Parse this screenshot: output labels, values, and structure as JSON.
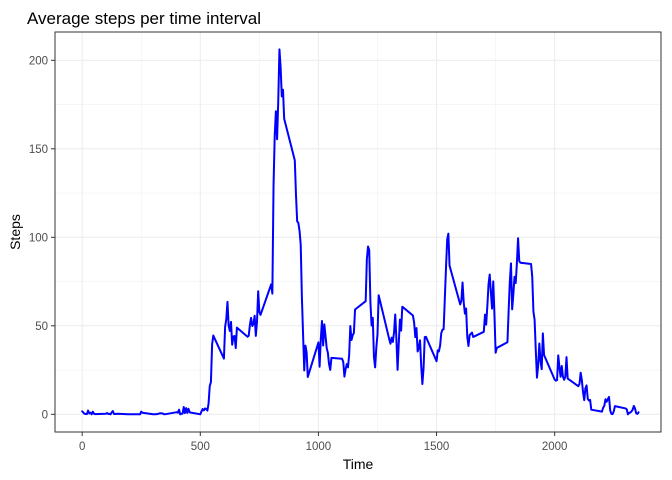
{
  "chart_data": {
    "type": "line",
    "title": "Average steps per time interval",
    "xlabel": "Time",
    "ylabel": "Steps",
    "xlim": [
      -115,
      2450
    ],
    "ylim": [
      -10,
      216
    ],
    "x_ticks": [
      0,
      500,
      1000,
      1500,
      2000
    ],
    "y_ticks": [
      0,
      50,
      100,
      150,
      200
    ],
    "x_tick_labels": [
      "0",
      "500",
      "1000",
      "1500",
      "2000"
    ],
    "y_tick_labels": [
      "0",
      "50",
      "100",
      "150",
      "200"
    ],
    "grid": true,
    "legend": "none",
    "series": [
      {
        "color": "#0000ff",
        "points": [
          [
            0,
            1.7
          ],
          [
            10,
            0.3
          ],
          [
            15,
            0.2
          ],
          [
            20,
            0.1
          ],
          [
            25,
            2.1
          ],
          [
            30,
            0.5
          ],
          [
            35,
            0.9
          ],
          [
            40,
            0.0
          ],
          [
            45,
            1.5
          ],
          [
            50,
            0.3
          ],
          [
            55,
            0.1
          ],
          [
            100,
            0.3
          ],
          [
            105,
            0.7
          ],
          [
            110,
            0.2
          ],
          [
            115,
            0.3
          ],
          [
            120,
            0.0
          ],
          [
            125,
            1.1
          ],
          [
            130,
            1.8
          ],
          [
            135,
            0.2
          ],
          [
            140,
            0.2
          ],
          [
            150,
            0.3
          ],
          [
            200,
            0.0
          ],
          [
            220,
            0.0
          ],
          [
            240,
            0.0
          ],
          [
            245,
            0.0
          ],
          [
            250,
            1.5
          ],
          [
            255,
            0.9
          ],
          [
            300,
            0.0
          ],
          [
            310,
            0.0
          ],
          [
            320,
            0.2
          ],
          [
            330,
            0.6
          ],
          [
            335,
            0.5
          ],
          [
            340,
            0.5
          ],
          [
            345,
            0.1
          ],
          [
            350,
            0.0
          ],
          [
            400,
            1.2
          ],
          [
            405,
            0.9
          ],
          [
            410,
            2.6
          ],
          [
            415,
            0.0
          ],
          [
            420,
            0.3
          ],
          [
            425,
            0.4
          ],
          [
            430,
            4.1
          ],
          [
            435,
            0.7
          ],
          [
            440,
            3.5
          ],
          [
            445,
            0.8
          ],
          [
            450,
            3.1
          ],
          [
            455,
            1.1
          ],
          [
            500,
            0.0
          ],
          [
            505,
            1.6
          ],
          [
            510,
            3.0
          ],
          [
            515,
            2.2
          ],
          [
            520,
            3.3
          ],
          [
            525,
            3.0
          ],
          [
            530,
            2.1
          ],
          [
            535,
            6.1
          ],
          [
            540,
            16.0
          ],
          [
            545,
            18.3
          ],
          [
            550,
            39.5
          ],
          [
            555,
            44.5
          ],
          [
            600,
            31.5
          ],
          [
            605,
            49.3
          ],
          [
            610,
            53.8
          ],
          [
            615,
            63.5
          ],
          [
            620,
            50.0
          ],
          [
            625,
            47.1
          ],
          [
            630,
            52.2
          ],
          [
            635,
            39.3
          ],
          [
            640,
            44.0
          ],
          [
            645,
            44.2
          ],
          [
            650,
            37.4
          ],
          [
            655,
            49.0
          ],
          [
            700,
            43.8
          ],
          [
            705,
            44.4
          ],
          [
            710,
            50.5
          ],
          [
            715,
            54.5
          ],
          [
            720,
            49.9
          ],
          [
            725,
            51.0
          ],
          [
            730,
            55.7
          ],
          [
            735,
            44.3
          ],
          [
            740,
            52.3
          ],
          [
            745,
            69.5
          ],
          [
            750,
            57.8
          ],
          [
            755,
            56.2
          ],
          [
            800,
            73.4
          ],
          [
            805,
            68.2
          ],
          [
            810,
            129.4
          ],
          [
            815,
            157.5
          ],
          [
            820,
            171.2
          ],
          [
            825,
            155.4
          ],
          [
            830,
            177.3
          ],
          [
            835,
            206.2
          ],
          [
            840,
            195.9
          ],
          [
            845,
            179.6
          ],
          [
            850,
            183.4
          ],
          [
            855,
            167.0
          ],
          [
            900,
            143.5
          ],
          [
            905,
            124.0
          ],
          [
            910,
            109.1
          ],
          [
            915,
            108.1
          ],
          [
            920,
            103.7
          ],
          [
            925,
            95.9
          ],
          [
            930,
            66.2
          ],
          [
            935,
            45.2
          ],
          [
            940,
            24.8
          ],
          [
            945,
            38.8
          ],
          [
            950,
            35.0
          ],
          [
            955,
            21.1
          ],
          [
            1000,
            40.6
          ],
          [
            1005,
            26.9
          ],
          [
            1010,
            42.4
          ],
          [
            1015,
            52.7
          ],
          [
            1020,
            38.9
          ],
          [
            1025,
            50.8
          ],
          [
            1030,
            44.3
          ],
          [
            1035,
            37.4
          ],
          [
            1040,
            34.7
          ],
          [
            1045,
            28.3
          ],
          [
            1050,
            25.1
          ],
          [
            1055,
            31.9
          ],
          [
            1100,
            31.4
          ],
          [
            1105,
            29.7
          ],
          [
            1110,
            21.3
          ],
          [
            1115,
            25.5
          ],
          [
            1120,
            28.4
          ],
          [
            1125,
            26.5
          ],
          [
            1130,
            33.4
          ],
          [
            1135,
            49.9
          ],
          [
            1140,
            42.0
          ],
          [
            1145,
            44.6
          ],
          [
            1150,
            46.0
          ],
          [
            1155,
            59.2
          ],
          [
            1200,
            63.9
          ],
          [
            1205,
            87.7
          ],
          [
            1210,
            94.8
          ],
          [
            1215,
            92.8
          ],
          [
            1220,
            63.4
          ],
          [
            1225,
            50.2
          ],
          [
            1230,
            54.5
          ],
          [
            1235,
            32.4
          ],
          [
            1240,
            26.5
          ],
          [
            1245,
            37.7
          ],
          [
            1250,
            45.1
          ],
          [
            1255,
            67.3
          ],
          [
            1300,
            42.3
          ],
          [
            1305,
            39.9
          ],
          [
            1310,
            43.3
          ],
          [
            1315,
            40.9
          ],
          [
            1320,
            46.2
          ],
          [
            1325,
            56.4
          ],
          [
            1330,
            42.8
          ],
          [
            1335,
            25.1
          ],
          [
            1340,
            39.9
          ],
          [
            1345,
            53.5
          ],
          [
            1350,
            47.3
          ],
          [
            1355,
            60.8
          ],
          [
            1400,
            55.8
          ],
          [
            1405,
            51.9
          ],
          [
            1410,
            43.6
          ],
          [
            1415,
            48.7
          ],
          [
            1420,
            35.5
          ],
          [
            1425,
            37.5
          ],
          [
            1430,
            41.8
          ],
          [
            1435,
            27.5
          ],
          [
            1440,
            17.1
          ],
          [
            1445,
            26.1
          ],
          [
            1450,
            43.6
          ],
          [
            1455,
            43.8
          ],
          [
            1500,
            30.0
          ],
          [
            1505,
            36.1
          ],
          [
            1510,
            35.5
          ],
          [
            1515,
            38.8
          ],
          [
            1520,
            45.9
          ],
          [
            1525,
            47.8
          ],
          [
            1530,
            48.1
          ],
          [
            1535,
            65.3
          ],
          [
            1540,
            82.9
          ],
          [
            1545,
            98.7
          ],
          [
            1550,
            102.1
          ],
          [
            1555,
            84.0
          ],
          [
            1600,
            62.1
          ],
          [
            1605,
            64.1
          ],
          [
            1610,
            74.5
          ],
          [
            1615,
            63.2
          ],
          [
            1620,
            56.9
          ],
          [
            1625,
            59.8
          ],
          [
            1630,
            43.9
          ],
          [
            1635,
            38.6
          ],
          [
            1640,
            44.7
          ],
          [
            1645,
            45.5
          ],
          [
            1650,
            46.2
          ],
          [
            1655,
            43.7
          ],
          [
            1700,
            46.6
          ],
          [
            1705,
            56.3
          ],
          [
            1710,
            50.7
          ],
          [
            1715,
            61.2
          ],
          [
            1720,
            73.4
          ],
          [
            1725,
            79.0
          ],
          [
            1730,
            68.9
          ],
          [
            1735,
            59.7
          ],
          [
            1740,
            75.1
          ],
          [
            1745,
            56.5
          ],
          [
            1750,
            34.8
          ],
          [
            1755,
            37.5
          ],
          [
            1800,
            40.7
          ],
          [
            1805,
            58.0
          ],
          [
            1810,
            74.7
          ],
          [
            1815,
            85.3
          ],
          [
            1820,
            59.3
          ],
          [
            1825,
            67.8
          ],
          [
            1830,
            77.7
          ],
          [
            1835,
            74.2
          ],
          [
            1840,
            85.3
          ],
          [
            1845,
            99.5
          ],
          [
            1850,
            86.6
          ],
          [
            1855,
            85.6
          ],
          [
            1900,
            84.9
          ],
          [
            1905,
            77.8
          ],
          [
            1910,
            58.0
          ],
          [
            1915,
            53.4
          ],
          [
            1920,
            36.3
          ],
          [
            1925,
            20.7
          ],
          [
            1930,
            27.4
          ],
          [
            1935,
            40.0
          ],
          [
            1940,
            30.2
          ],
          [
            1945,
            25.5
          ],
          [
            1950,
            45.7
          ],
          [
            1955,
            33.5
          ],
          [
            2000,
            19.6
          ],
          [
            2005,
            19.0
          ],
          [
            2010,
            19.3
          ],
          [
            2015,
            33.3
          ],
          [
            2020,
            26.8
          ],
          [
            2025,
            21.2
          ],
          [
            2030,
            27.3
          ],
          [
            2035,
            21.3
          ],
          [
            2040,
            19.5
          ],
          [
            2045,
            21.3
          ],
          [
            2050,
            32.3
          ],
          [
            2055,
            20.2
          ],
          [
            2100,
            15.9
          ],
          [
            2105,
            17.2
          ],
          [
            2110,
            23.5
          ],
          [
            2115,
            19.2
          ],
          [
            2120,
            12.5
          ],
          [
            2125,
            8.0
          ],
          [
            2130,
            14.7
          ],
          [
            2135,
            16.3
          ],
          [
            2140,
            8.7
          ],
          [
            2145,
            7.8
          ],
          [
            2150,
            8.1
          ],
          [
            2155,
            2.6
          ],
          [
            2200,
            1.5
          ],
          [
            2205,
            3.7
          ],
          [
            2210,
            4.8
          ],
          [
            2215,
            8.5
          ],
          [
            2220,
            7.1
          ],
          [
            2225,
            8.7
          ],
          [
            2230,
            9.8
          ],
          [
            2235,
            2.2
          ],
          [
            2240,
            0.3
          ],
          [
            2245,
            0.1
          ],
          [
            2250,
            1.6
          ],
          [
            2255,
            4.6
          ],
          [
            2300,
            3.3
          ],
          [
            2305,
            2.8
          ],
          [
            2310,
            0.0
          ],
          [
            2315,
            0.8
          ],
          [
            2320,
            1.0
          ],
          [
            2325,
            1.6
          ],
          [
            2330,
            2.6
          ],
          [
            2335,
            4.7
          ],
          [
            2340,
            3.3
          ],
          [
            2345,
            0.6
          ],
          [
            2350,
            0.2
          ],
          [
            2355,
            1.1
          ]
        ]
      }
    ]
  }
}
